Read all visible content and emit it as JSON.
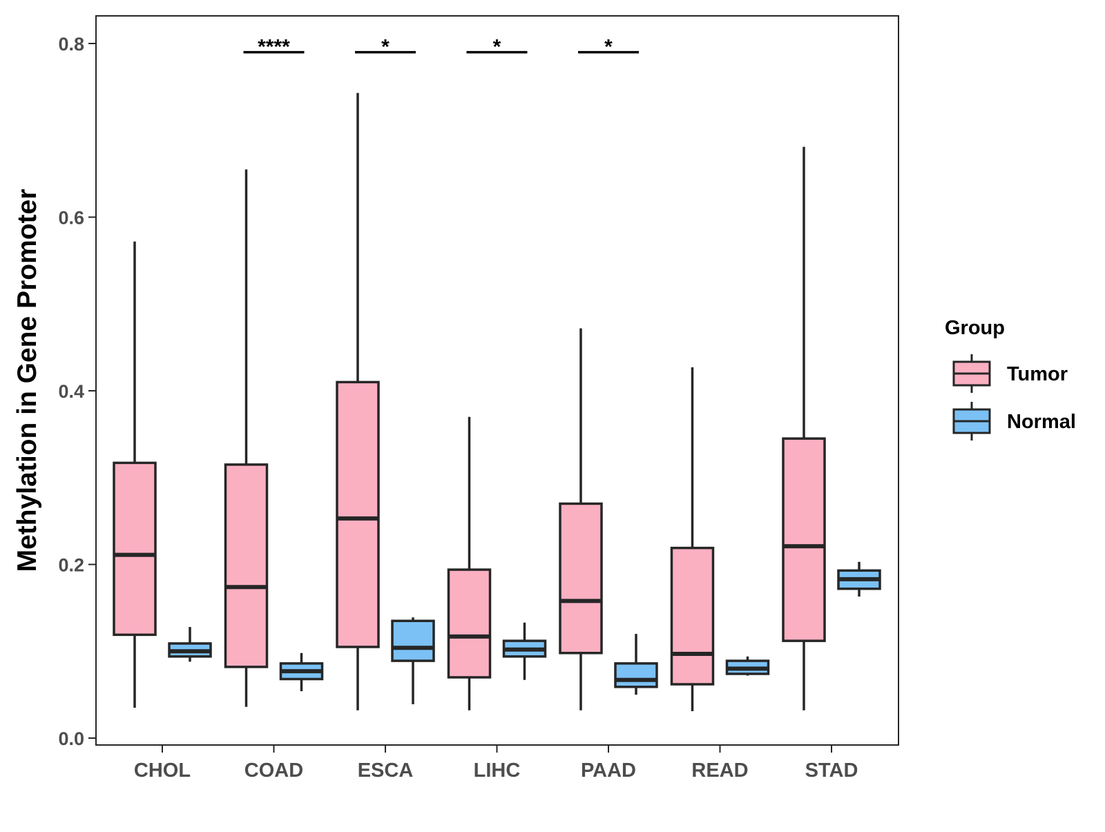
{
  "chart_data": {
    "type": "boxplot",
    "title": "",
    "xlabel": "",
    "ylabel": "Methylation in Gene Promoter",
    "ylim": [
      0,
      0.83
    ],
    "yticks": [
      0.0,
      0.2,
      0.4,
      0.6,
      0.8
    ],
    "ytick_labels": [
      "0.0",
      "0.2",
      "0.4",
      "0.6",
      "0.8"
    ],
    "categories": [
      "CHOL",
      "COAD",
      "ESCA",
      "LIHC",
      "PAAD",
      "READ",
      "STAD"
    ],
    "legend": {
      "title": "Group",
      "position": "right",
      "entries": [
        "Tumor",
        "Normal"
      ]
    },
    "colors": {
      "Tumor": "#fbb0c2",
      "Normal": "#7bc1f5",
      "stroke": "#262626",
      "axis": "#262626"
    },
    "series": [
      {
        "name": "Tumor",
        "boxes": [
          {
            "min": 0.035,
            "q1": 0.119,
            "median": 0.211,
            "q3": 0.317,
            "max": 0.572
          },
          {
            "min": 0.036,
            "q1": 0.082,
            "median": 0.174,
            "q3": 0.315,
            "max": 0.655
          },
          {
            "min": 0.032,
            "q1": 0.105,
            "median": 0.253,
            "q3": 0.41,
            "max": 0.743
          },
          {
            "min": 0.032,
            "q1": 0.07,
            "median": 0.117,
            "q3": 0.194,
            "max": 0.37
          },
          {
            "min": 0.032,
            "q1": 0.098,
            "median": 0.158,
            "q3": 0.27,
            "max": 0.472
          },
          {
            "min": 0.031,
            "q1": 0.062,
            "median": 0.097,
            "q3": 0.219,
            "max": 0.427
          },
          {
            "min": 0.032,
            "q1": 0.112,
            "median": 0.221,
            "q3": 0.345,
            "max": 0.681
          }
        ]
      },
      {
        "name": "Normal",
        "boxes": [
          {
            "min": 0.088,
            "q1": 0.094,
            "median": 0.1,
            "q3": 0.109,
            "max": 0.128
          },
          {
            "min": 0.054,
            "q1": 0.068,
            "median": 0.077,
            "q3": 0.086,
            "max": 0.098
          },
          {
            "min": 0.039,
            "q1": 0.089,
            "median": 0.104,
            "q3": 0.135,
            "max": 0.139
          },
          {
            "min": 0.067,
            "q1": 0.094,
            "median": 0.102,
            "q3": 0.112,
            "max": 0.133
          },
          {
            "min": 0.05,
            "q1": 0.059,
            "median": 0.067,
            "q3": 0.086,
            "max": 0.12
          },
          {
            "min": 0.072,
            "q1": 0.074,
            "median": 0.08,
            "q3": 0.089,
            "max": 0.094
          },
          {
            "min": 0.163,
            "q1": 0.172,
            "median": 0.183,
            "q3": 0.193,
            "max": 0.203
          }
        ]
      }
    ],
    "annotations": [
      {
        "category": "COAD",
        "label": "****",
        "y": 0.79
      },
      {
        "category": "ESCA",
        "label": "*",
        "y": 0.79
      },
      {
        "category": "LIHC",
        "label": "*",
        "y": 0.79
      },
      {
        "category": "PAAD",
        "label": "*",
        "y": 0.79
      }
    ]
  }
}
